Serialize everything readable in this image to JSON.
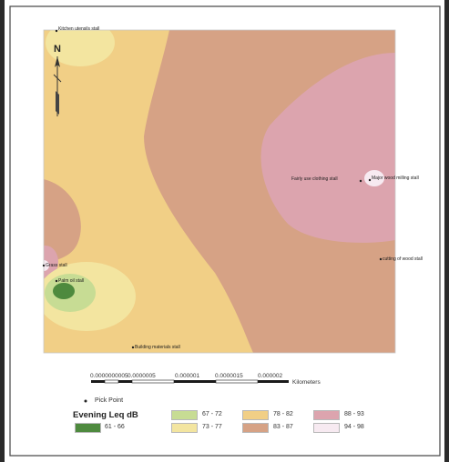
{
  "map": {
    "north_label": "N",
    "point_labels": {
      "kitchen": "Kitchen utensils stall",
      "major_wood": "Major wood milling stall",
      "fairly_used": "Fairly use clothing stall",
      "cutting_wood": "cutting of wood stall",
      "grass": "Grass stall",
      "palm_oil": "Palm oil stall",
      "building": "Building materials stall"
    }
  },
  "scale_bar": {
    "ticks": [
      "0.0000005",
      "0.000001",
      "0.0000015",
      "0.000002"
    ],
    "start_text": "0.0000000005",
    "units": "Kilometers"
  },
  "legend": {
    "point_label": "Pick Point",
    "title": "Evening Leq dB",
    "classes": [
      {
        "range": "61 - 66",
        "color": "#4e8a3e"
      },
      {
        "range": "67 - 72",
        "color": "#c7dc94"
      },
      {
        "range": "73 - 77",
        "color": "#f3e5a0"
      },
      {
        "range": "78 - 82",
        "color": "#f1cf86"
      },
      {
        "range": "83 - 87",
        "color": "#d6a285"
      },
      {
        "range": "88 - 93",
        "color": "#dca4ae"
      },
      {
        "range": "94 - 98",
        "color": "#f7eaf1"
      }
    ]
  }
}
